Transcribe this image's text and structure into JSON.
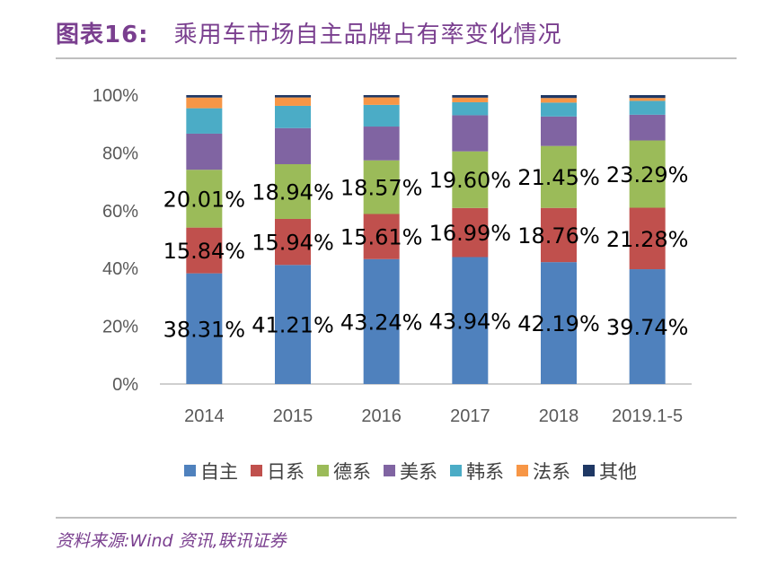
{
  "figure": {
    "title_num": "图表16:",
    "title_text": "乘用车市场自主品牌占有率变化情况",
    "source": "资料来源:Wind 资讯,联讯证券"
  },
  "chart_data": {
    "type": "bar",
    "stacked": true,
    "categories": [
      "2014",
      "2015",
      "2016",
      "2017",
      "2018",
      "2019.1-5"
    ],
    "ylim": [
      0,
      100
    ],
    "yticks": [
      "0%",
      "20%",
      "40%",
      "60%",
      "80%",
      "100%"
    ],
    "legend_position": "bottom",
    "series": [
      {
        "name": "自主",
        "color": "#4f81bd",
        "values": [
          38.31,
          41.21,
          43.24,
          43.94,
          42.19,
          39.74
        ],
        "labels": [
          "38.31%",
          "41.21%",
          "43.24%",
          "43.94%",
          "42.19%",
          "39.74%"
        ]
      },
      {
        "name": "日系",
        "color": "#c0504d",
        "values": [
          15.84,
          15.94,
          15.61,
          16.99,
          18.76,
          21.28
        ],
        "labels": [
          "15.84%",
          "15.94%",
          "15.61%",
          "16.99%",
          "18.76%",
          "21.28%"
        ]
      },
      {
        "name": "德系",
        "color": "#9bbb59",
        "values": [
          20.01,
          18.94,
          18.57,
          19.6,
          21.45,
          23.29
        ],
        "labels": [
          "20.01%",
          "18.94%",
          "18.57%",
          "19.60%",
          "21.45%",
          "23.29%"
        ]
      },
      {
        "name": "美系",
        "color": "#8064a2",
        "values": [
          12.5,
          12.5,
          11.7,
          12.5,
          10.2,
          8.9
        ]
      },
      {
        "name": "韩系",
        "color": "#4bacc6",
        "values": [
          8.8,
          7.7,
          7.5,
          4.5,
          4.8,
          4.8
        ]
      },
      {
        "name": "法系",
        "color": "#f79646",
        "values": [
          3.7,
          2.9,
          2.6,
          1.6,
          1.6,
          1.0
        ]
      },
      {
        "name": "其他",
        "color": "#1f3864",
        "values": [
          0.84,
          0.81,
          0.78,
          0.87,
          1.0,
          0.99
        ]
      }
    ]
  }
}
